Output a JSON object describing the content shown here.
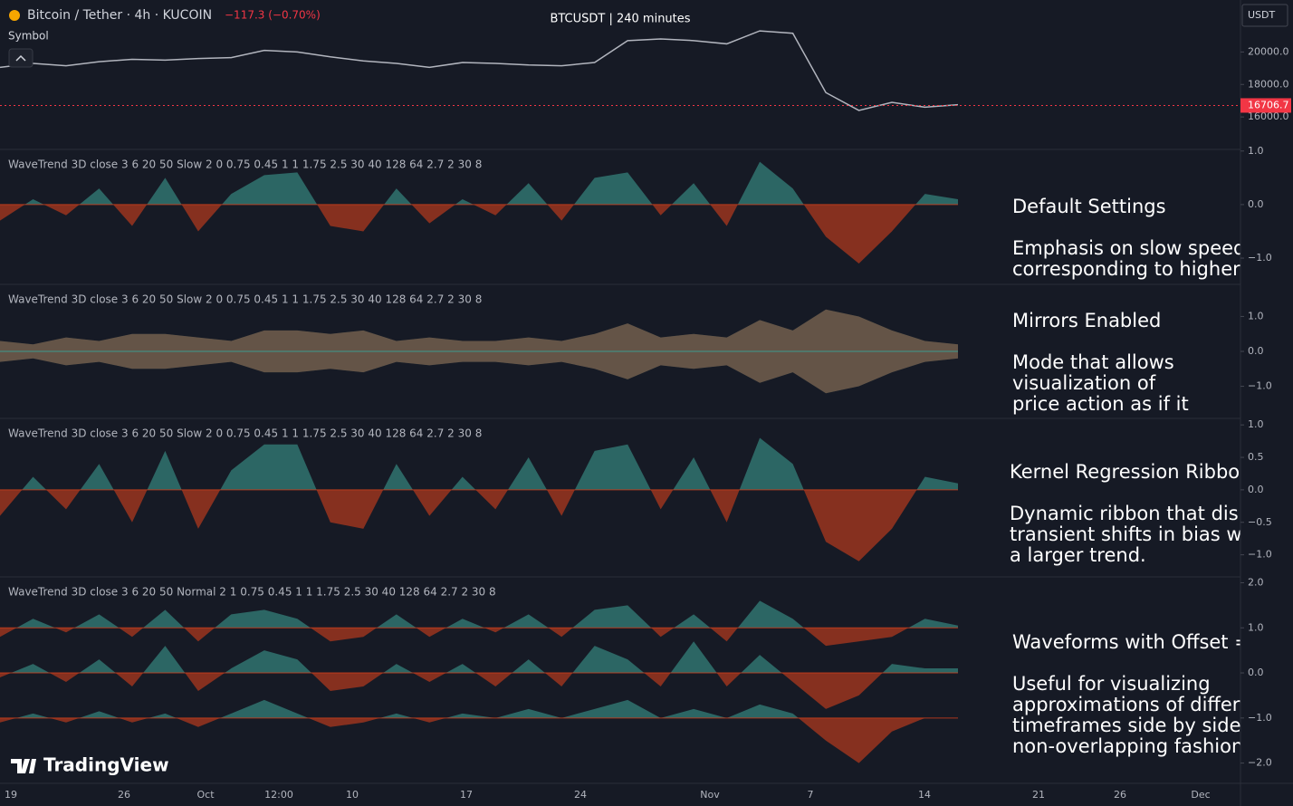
{
  "theme": {
    "up_color": "#3c9a8f",
    "down_color": "#d2401c",
    "price_color": "#b2b5be",
    "last_price_color": "#f23645"
  },
  "header": {
    "symbol": "Bitcoin / Tether · 4h · KUCOIN",
    "change": "−117.3 (−0.70%)",
    "symbol_label": "Symbol",
    "center_title": "BTCUSDT | 240 minutes",
    "currency": "USDT"
  },
  "price_pane": {
    "last_price": 16706.7,
    "closes": [
      19050,
      19300,
      19150,
      19400,
      19550,
      19500,
      19600,
      19650,
      20100,
      20000,
      19700,
      19450,
      19300,
      19050,
      19350,
      19300,
      19200,
      19150,
      19350,
      20700,
      20800,
      20700,
      20500,
      21300,
      21150,
      17500,
      16400,
      16900,
      16600,
      16750
    ],
    "ylim": [
      14000,
      23200
    ],
    "yticks": [
      {
        "value": 20000,
        "label": "20000.0"
      },
      {
        "value": 18000,
        "label": "18000.0"
      },
      {
        "value": 16000,
        "label": "16000.0"
      }
    ]
  },
  "panes": [
    {
      "label": "WaveTrend 3D close 3 6 20 50 Slow 2 0 0.75 0.45 1 1 1.75 2.5 30 40 128 64 2.7 2 30 8",
      "ylim": [
        -1.49,
        1.03
      ],
      "yticks": [
        {
          "value": 1,
          "label": "1.0"
        },
        {
          "value": 0,
          "label": "0.0"
        },
        {
          "value": -1,
          "label": "−1.0"
        }
      ],
      "mirror": false,
      "series": [
        {
          "baseline": 0,
          "values": [
            -0.3,
            0.1,
            -0.2,
            0.3,
            -0.4,
            0.5,
            -0.5,
            0.2,
            0.55,
            0.6,
            -0.4,
            -0.5,
            0.3,
            -0.35,
            0.1,
            -0.2,
            0.4,
            -0.3,
            0.5,
            0.6,
            -0.2,
            0.4,
            -0.4,
            0.8,
            0.3,
            -0.6,
            -1.1,
            -0.5,
            0.2,
            0.1
          ]
        }
      ],
      "notes": [
        "Default Settings",
        "Emphasis on slow speed",
        "corresponding to higher"
      ]
    },
    {
      "label": "WaveTrend 3D close 3 6 20 50 Slow 2 0 0.75 0.45 1 1 1.75 2.5 30 40 128 64 2.7 2 30 8",
      "ylim": [
        -1.92,
        1.92
      ],
      "yticks": [
        {
          "value": 1,
          "label": "1.0"
        },
        {
          "value": 0,
          "label": "0.0"
        },
        {
          "value": -1,
          "label": "−1.0"
        }
      ],
      "mirror": true,
      "series": [
        {
          "baseline": 0,
          "values": [
            0.3,
            0.2,
            0.4,
            0.3,
            0.5,
            0.5,
            0.4,
            0.3,
            0.6,
            0.6,
            0.5,
            0.6,
            0.3,
            0.4,
            0.3,
            0.3,
            0.4,
            0.3,
            0.5,
            0.8,
            0.4,
            0.5,
            0.4,
            0.9,
            0.6,
            1.2,
            1.0,
            0.6,
            0.3,
            0.2
          ]
        }
      ],
      "notes": [
        "Mirrors Enabled",
        "Mode that allows",
        "visualization of",
        "price action as if it"
      ]
    },
    {
      "label": "WaveTrend 3D close 3 6 20 50 Slow 2 0 0.75 0.45 1 1 1.75 2.5 30 40 128 64 2.7 2 30 8",
      "ylim": [
        -1.34,
        1.1
      ],
      "yticks": [
        {
          "value": 1,
          "label": "1.0"
        },
        0.5,
        {
          "value": 0,
          "label": "0.0"
        },
        {
          "value": -0.5,
          "label": "−0.5"
        },
        {
          "value": -1,
          "label": "−1.0"
        }
      ],
      "mirror": false,
      "series": [
        {
          "baseline": 0,
          "values": [
            -0.4,
            0.2,
            -0.3,
            0.4,
            -0.5,
            0.6,
            -0.6,
            0.3,
            0.7,
            0.7,
            -0.5,
            -0.6,
            0.4,
            -0.4,
            0.2,
            -0.3,
            0.5,
            -0.4,
            0.6,
            0.7,
            -0.3,
            0.5,
            -0.5,
            0.8,
            0.4,
            -0.8,
            -1.1,
            -0.6,
            0.2,
            0.1
          ]
        }
      ],
      "notes": [
        "Kernel Regression Ribbon",
        "Dynamic ribbon that disp",
        "transient shifts in bias w",
        "a larger trend."
      ]
    },
    {
      "label": "WaveTrend 3D close 3 6 20 50 Normal 2 1 0.75 0.45 1 1 1.75 2.5 30 40 128 64 2.7 2 30 8",
      "ylim": [
        -2.45,
        2.13
      ],
      "yticks": [
        {
          "value": 2,
          "label": "2.0"
        },
        {
          "value": 1,
          "label": "1.0"
        },
        {
          "value": 0,
          "label": "0.0"
        },
        {
          "value": -1,
          "label": "−1.0"
        },
        {
          "value": -2,
          "label": "−2.0"
        }
      ],
      "mirror": false,
      "series": [
        {
          "baseline": 1,
          "values": [
            0.8,
            1.2,
            0.9,
            1.3,
            0.8,
            1.4,
            0.7,
            1.3,
            1.4,
            1.2,
            0.7,
            0.8,
            1.3,
            0.8,
            1.2,
            0.9,
            1.3,
            0.8,
            1.4,
            1.5,
            0.8,
            1.3,
            0.7,
            1.6,
            1.2,
            0.6,
            0.7,
            0.8,
            1.2,
            1.05
          ]
        },
        {
          "baseline": 0,
          "values": [
            -0.1,
            0.2,
            -0.2,
            0.3,
            -0.3,
            0.6,
            -0.4,
            0.1,
            0.5,
            0.3,
            -0.4,
            -0.3,
            0.2,
            -0.2,
            0.2,
            -0.3,
            0.3,
            -0.3,
            0.6,
            0.3,
            -0.3,
            0.7,
            -0.3,
            0.4,
            -0.2,
            -0.8,
            -0.5,
            0.2,
            0.1,
            0.1
          ]
        },
        {
          "baseline": -1,
          "values": [
            -1.1,
            -0.9,
            -1.1,
            -0.85,
            -1.1,
            -0.9,
            -1.2,
            -0.9,
            -0.6,
            -0.9,
            -1.2,
            -1.1,
            -0.9,
            -1.1,
            -0.9,
            -1.0,
            -0.8,
            -1.0,
            -0.8,
            -0.6,
            -1.0,
            -0.8,
            -1.0,
            -0.7,
            -0.9,
            -1.5,
            -2.0,
            -1.3,
            -1.0,
            -1.0
          ]
        }
      ],
      "notes": [
        "Waveforms with Offset =",
        "Useful for visualizing",
        "approximations of differe",
        "timeframes side by side",
        "non-overlapping fashion"
      ]
    }
  ],
  "x_axis": {
    "labels": [
      "19",
      "26",
      "Oct",
      "12:00",
      "10",
      "17",
      "24",
      "Nov",
      "7",
      "14",
      "21",
      "26",
      "Dec"
    ]
  },
  "branding": "TradingView"
}
